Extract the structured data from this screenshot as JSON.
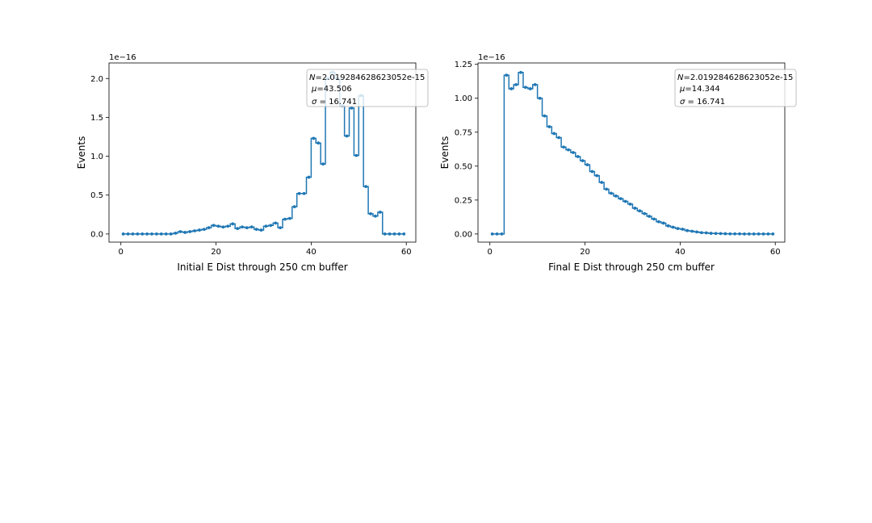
{
  "chart_data": [
    {
      "type": "line",
      "drawstyle": "steps-mid",
      "marker": "dot",
      "color": "#1f77b4",
      "xlabel": "Initial E Dist through 250 cm buffer",
      "ylabel": "Events",
      "offset_text": "1e−16",
      "xlim": [
        -2.5,
        62
      ],
      "ylim": [
        -0.105,
        2.2
      ],
      "xticks": [
        0,
        20,
        40,
        60
      ],
      "xtick_labels": [
        "0",
        "20",
        "40",
        "60"
      ],
      "yticks": [
        0.0,
        0.5,
        1.0,
        1.5,
        2.0
      ],
      "ytick_labels": [
        "0.0",
        "0.5",
        "1.0",
        "1.5",
        "2.0"
      ],
      "legend_position": "upper-right",
      "stats": {
        "n_prefix": "N",
        "n_value": "=2.019284628623052e-15",
        "mu_prefix": "μ",
        "mu_value": "=43.506",
        "sigma_prefix": "σ",
        "sigma_value": " = 16.741"
      },
      "x": [
        0.5,
        1.5,
        2.5,
        3.5,
        4.5,
        5.5,
        6.5,
        7.5,
        8.5,
        9.5,
        10.5,
        11.5,
        12.5,
        13.5,
        14.5,
        15.5,
        16.5,
        17.5,
        18.5,
        19.5,
        20.5,
        21.5,
        22.5,
        23.5,
        24.5,
        25.5,
        26.5,
        27.5,
        28.5,
        29.5,
        30.5,
        31.5,
        32.5,
        33.5,
        34.5,
        35.5,
        36.5,
        37.5,
        38.5,
        39.5,
        40.5,
        41.5,
        42.5,
        43.5,
        44.5,
        45.5,
        46.5,
        47.5,
        48.5,
        49.5,
        50.5,
        51.5,
        52.5,
        53.5,
        54.5,
        55.5,
        56.5,
        57.5,
        58.5,
        59.5
      ],
      "y": [
        0,
        0,
        0,
        0,
        0,
        0,
        0,
        0,
        0,
        0,
        0,
        0.01,
        0.03,
        0.02,
        0.03,
        0.04,
        0.05,
        0.06,
        0.08,
        0.11,
        0.1,
        0.09,
        0.1,
        0.13,
        0.07,
        0.09,
        0.08,
        0.09,
        0.06,
        0.05,
        0.1,
        0.11,
        0.14,
        0.08,
        0.19,
        0.2,
        0.35,
        0.52,
        0.52,
        0.73,
        1.23,
        1.17,
        0.9,
        2.0,
        2.08,
        2.0,
        1.65,
        1.26,
        1.62,
        1.01,
        1.78,
        0.61,
        0.26,
        0.23,
        0.28,
        0,
        0,
        0,
        0,
        0
      ]
    },
    {
      "type": "line",
      "drawstyle": "steps-mid",
      "marker": "dot",
      "color": "#1f77b4",
      "xlabel": "Final E Dist through 250 cm buffer",
      "ylabel": "Events",
      "offset_text": "1e−16",
      "xlim": [
        -2.5,
        62
      ],
      "ylim": [
        -0.06,
        1.26
      ],
      "xticks": [
        0,
        20,
        40,
        60
      ],
      "xtick_labels": [
        "0",
        "20",
        "40",
        "60"
      ],
      "yticks": [
        0.0,
        0.25,
        0.5,
        0.75,
        1.0,
        1.25
      ],
      "ytick_labels": [
        "0.00",
        "0.25",
        "0.50",
        "0.75",
        "1.00",
        "1.25"
      ],
      "legend_position": "upper-right",
      "stats": {
        "n_prefix": "N",
        "n_value": "=2.019284628623052e-15",
        "mu_prefix": "μ",
        "mu_value": "=14.344",
        "sigma_prefix": "σ",
        "sigma_value": " = 16.741"
      },
      "x": [
        0.5,
        1.5,
        2.5,
        3.5,
        4.5,
        5.5,
        6.5,
        7.5,
        8.5,
        9.5,
        10.5,
        11.5,
        12.5,
        13.5,
        14.5,
        15.5,
        16.5,
        17.5,
        18.5,
        19.5,
        20.5,
        21.5,
        22.5,
        23.5,
        24.5,
        25.5,
        26.5,
        27.5,
        28.5,
        29.5,
        30.5,
        31.5,
        32.5,
        33.5,
        34.5,
        35.5,
        36.5,
        37.5,
        38.5,
        39.5,
        40.5,
        41.5,
        42.5,
        43.5,
        44.5,
        45.5,
        46.5,
        47.5,
        48.5,
        49.5,
        50.5,
        51.5,
        52.5,
        53.5,
        54.5,
        55.5,
        56.5,
        57.5,
        58.5,
        59.5
      ],
      "y": [
        0,
        0,
        0,
        1.17,
        1.07,
        1.1,
        1.19,
        1.08,
        1.07,
        1.1,
        1.0,
        0.87,
        0.79,
        0.74,
        0.71,
        0.64,
        0.62,
        0.6,
        0.57,
        0.54,
        0.51,
        0.46,
        0.43,
        0.38,
        0.33,
        0.3,
        0.28,
        0.26,
        0.24,
        0.22,
        0.19,
        0.17,
        0.15,
        0.13,
        0.11,
        0.09,
        0.08,
        0.06,
        0.05,
        0.04,
        0.035,
        0.025,
        0.02,
        0.015,
        0.01,
        0.008,
        0.005,
        0.004,
        0.003,
        0.002,
        0.001,
        0.001,
        0.001,
        0,
        0,
        0,
        0,
        0,
        0,
        0
      ]
    }
  ]
}
